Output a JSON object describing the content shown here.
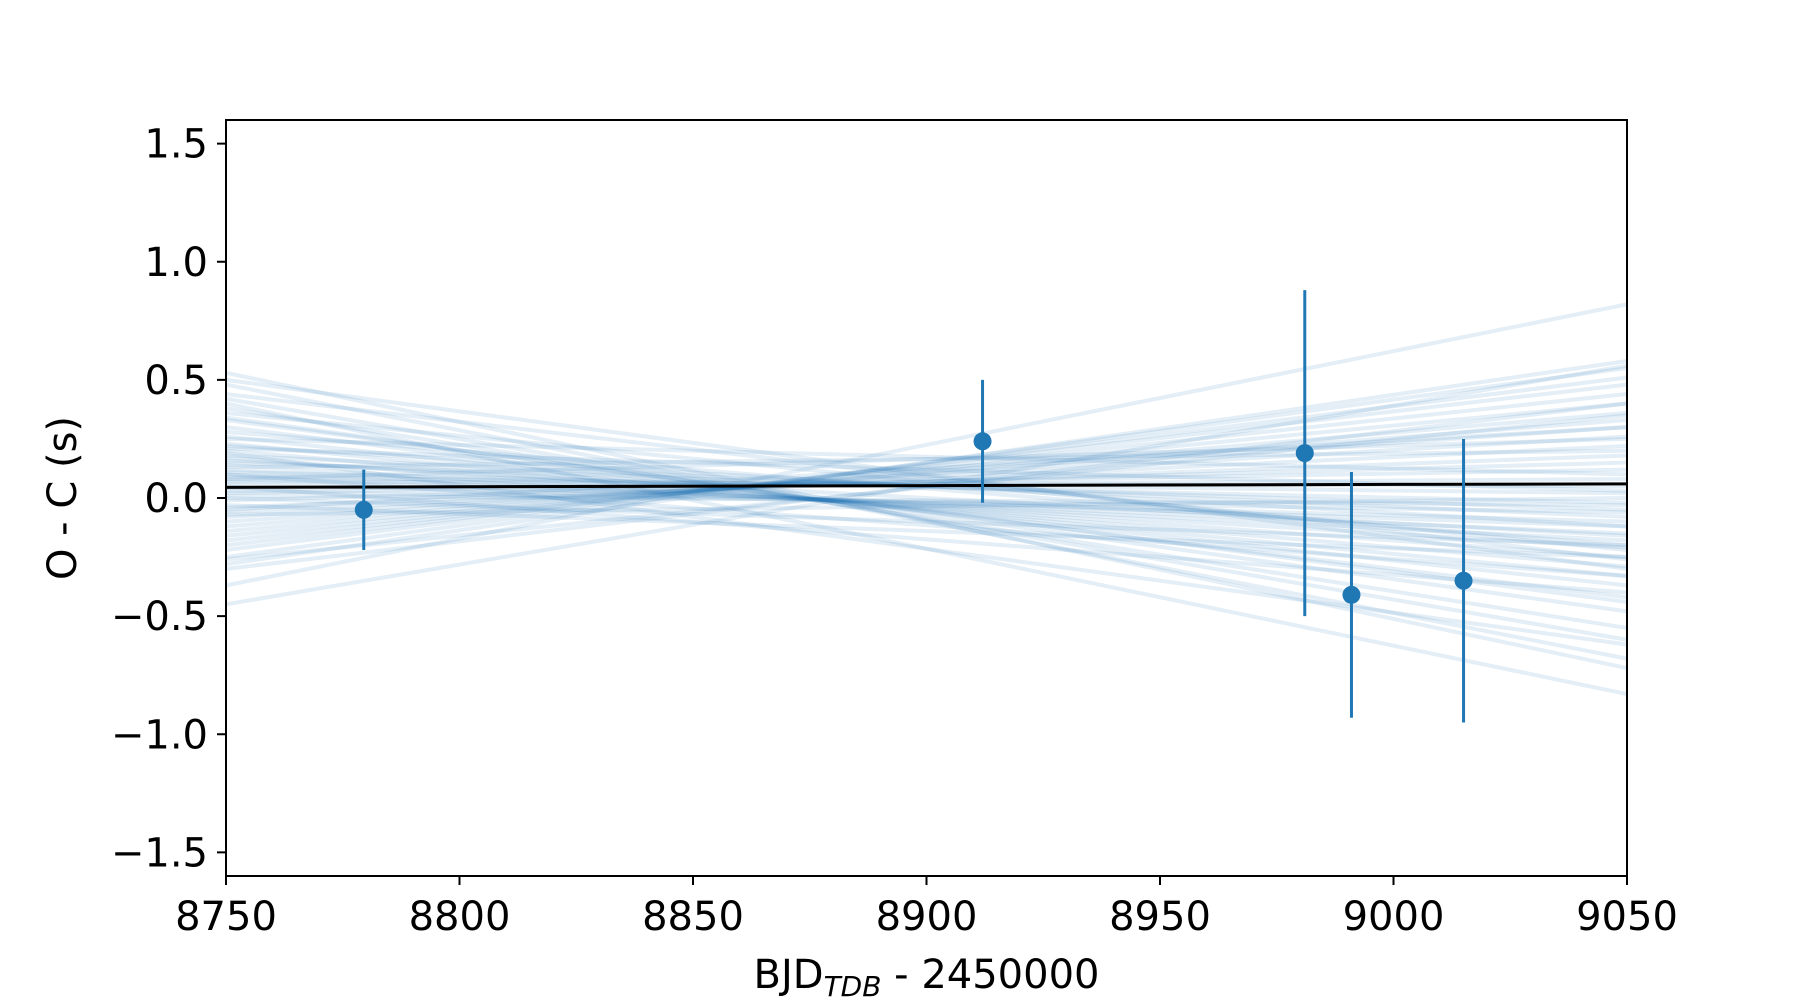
{
  "chart_data": {
    "type": "scatter",
    "title": "",
    "xlabel": {
      "main": "BJD",
      "subscript": "TDB",
      "suffix": " - 2450000"
    },
    "ylabel": "O - C (s)",
    "xlim": [
      8750,
      9050
    ],
    "ylim": [
      -1.6,
      1.6
    ],
    "xticks": [
      8750,
      8800,
      8850,
      8900,
      8950,
      9000,
      9050
    ],
    "xtick_labels": [
      "8750",
      "8800",
      "8850",
      "8900",
      "8950",
      "9000",
      "9050"
    ],
    "yticks": [
      1.5,
      1.0,
      0.5,
      0.0,
      -0.5,
      -1.0,
      -1.5
    ],
    "ytick_labels": [
      "1.5",
      "1.0",
      "0.5",
      "0.0",
      "−0.5",
      "−1.0",
      "−1.5"
    ],
    "grid": false,
    "colors": {
      "points": "#1f77b4",
      "samples": "#1f77b4",
      "best_fit": "#000000"
    },
    "points": [
      {
        "x": 8779.5,
        "y": -0.05,
        "yerr": 0.17
      },
      {
        "x": 8912.0,
        "y": 0.24,
        "yerr": 0.26
      },
      {
        "x": 8981.0,
        "y": 0.19,
        "yerr": 0.69
      },
      {
        "x": 8991.0,
        "y": -0.41,
        "yerr": 0.52
      },
      {
        "x": 9015.0,
        "y": -0.35,
        "yerr": 0.6
      }
    ],
    "best_fit": {
      "x": [
        8750,
        9050
      ],
      "y": [
        0.045,
        0.06
      ]
    },
    "sample_lines": [
      [
        0.53,
        -0.72
      ],
      [
        0.48,
        -0.68
      ],
      [
        0.42,
        -0.6
      ],
      [
        0.38,
        -0.55
      ],
      [
        0.34,
        -0.48
      ],
      [
        0.3,
        -0.42
      ],
      [
        0.26,
        -0.37
      ],
      [
        0.23,
        -0.33
      ],
      [
        0.2,
        -0.29
      ],
      [
        0.17,
        -0.25
      ],
      [
        0.14,
        -0.21
      ],
      [
        0.12,
        -0.18
      ],
      [
        0.1,
        -0.15
      ],
      [
        0.08,
        -0.12
      ],
      [
        0.06,
        -0.1
      ],
      [
        0.03,
        -0.06
      ],
      [
        0.01,
        -0.03
      ],
      [
        0.5,
        -0.3
      ],
      [
        0.44,
        -0.26
      ],
      [
        0.36,
        -0.22
      ],
      [
        0.28,
        -0.2
      ],
      [
        0.22,
        -0.12
      ],
      [
        0.18,
        -0.08
      ],
      [
        0.15,
        -0.05
      ],
      [
        0.11,
        -0.02
      ],
      [
        0.09,
        0.02
      ],
      [
        0.07,
        0.05
      ],
      [
        0.04,
        0.08
      ],
      [
        0.02,
        0.12
      ],
      [
        -0.01,
        0.15
      ],
      [
        -0.04,
        0.18
      ],
      [
        -0.06,
        0.22
      ],
      [
        -0.08,
        0.26
      ],
      [
        -0.1,
        0.3
      ],
      [
        -0.12,
        0.33
      ],
      [
        -0.14,
        0.36
      ],
      [
        -0.16,
        0.4
      ],
      [
        -0.18,
        0.44
      ],
      [
        -0.2,
        0.48
      ],
      [
        -0.22,
        0.51
      ],
      [
        -0.25,
        0.55
      ],
      [
        -0.28,
        0.58
      ],
      [
        -0.37,
        0.82
      ],
      [
        -0.45,
        0.56
      ],
      [
        -0.3,
        0.4
      ],
      [
        -0.05,
        0.3
      ],
      [
        0.0,
        -0.2
      ],
      [
        0.05,
        -0.4
      ],
      [
        0.1,
        -0.33
      ],
      [
        0.19,
        -0.62
      ],
      [
        0.33,
        -0.44
      ],
      [
        0.25,
        0.1
      ],
      [
        0.13,
        0.2
      ],
      [
        -0.03,
        -0.25
      ],
      [
        -0.07,
        0.0
      ],
      [
        0.4,
        -0.83
      ],
      [
        -0.26,
        0.35
      ],
      [
        0.16,
        -0.16
      ],
      [
        0.21,
        0.03
      ],
      [
        0.08,
        0.25
      ]
    ]
  }
}
